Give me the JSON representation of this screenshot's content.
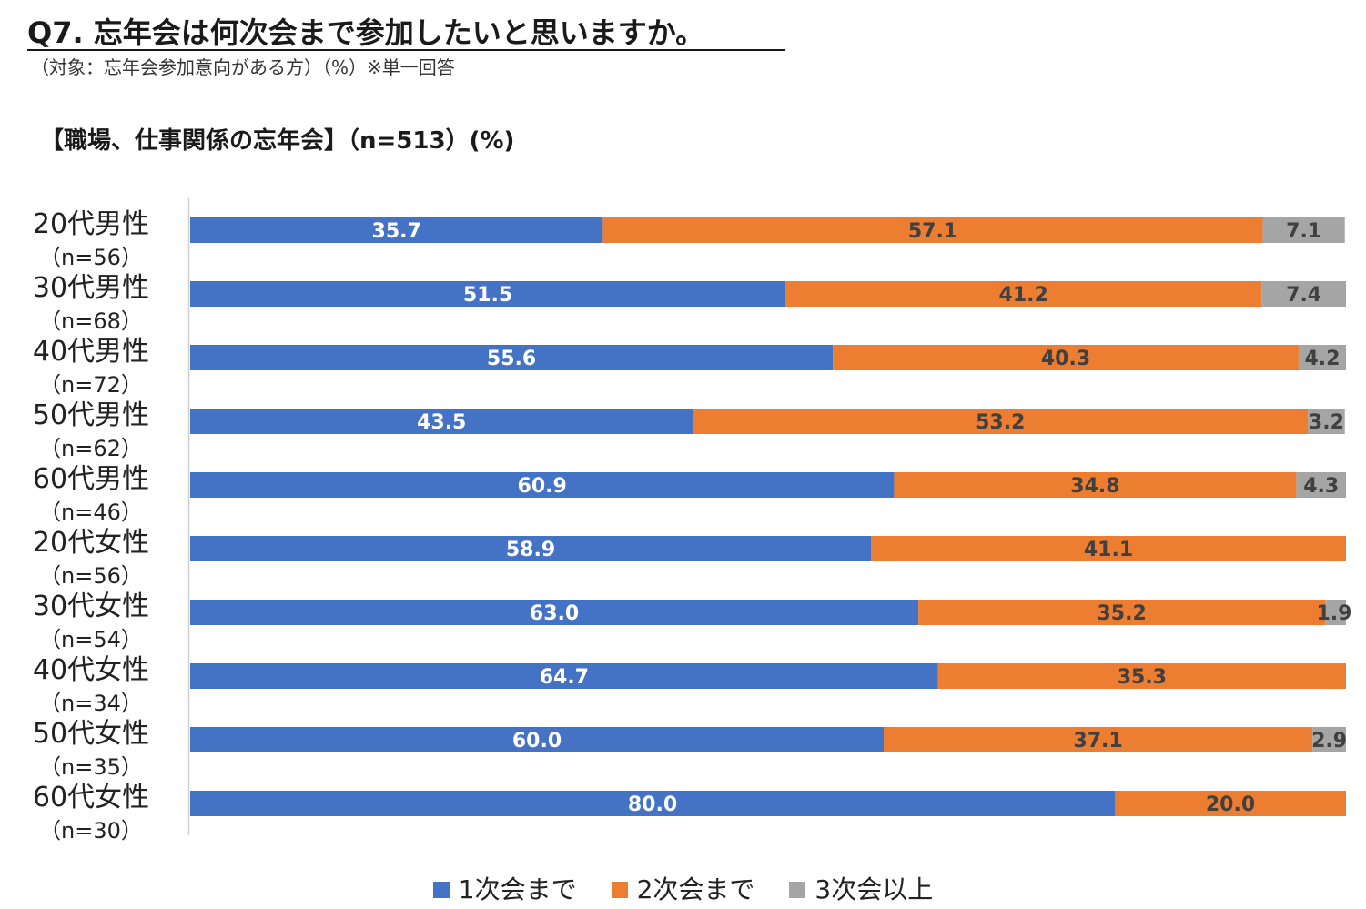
{
  "header": {
    "title": "Q7. 忘年会は何次会まで参加したいと思いますか。",
    "subtitle": "（対象：忘年会参加意向がある方）（%）※単一回答"
  },
  "chart_data": {
    "type": "bar",
    "orientation": "horizontal",
    "stacked": true,
    "title": "【職場、仕事関係の忘年会】（n=513）(%)",
    "xlim": [
      0,
      100
    ],
    "categories": [
      {
        "name": "20代男性",
        "n": "（n=56）"
      },
      {
        "name": "30代男性",
        "n": "（n=68）"
      },
      {
        "name": "40代男性",
        "n": "（n=72）"
      },
      {
        "name": "50代男性",
        "n": "（n=62）"
      },
      {
        "name": "60代男性",
        "n": "（n=46）"
      },
      {
        "name": "20代女性",
        "n": "（n=56）"
      },
      {
        "name": "30代女性",
        "n": "（n=54）"
      },
      {
        "name": "40代女性",
        "n": "（n=34）"
      },
      {
        "name": "50代女性",
        "n": "（n=35）"
      },
      {
        "name": "60代女性",
        "n": "（n=30）"
      }
    ],
    "series": [
      {
        "name": "1次会まで",
        "color": "#4472C4",
        "label_color": "#ffffff",
        "values": [
          35.7,
          51.5,
          55.6,
          43.5,
          60.9,
          58.9,
          63.0,
          64.7,
          60.0,
          80.0
        ]
      },
      {
        "name": "2次会まで",
        "color": "#ED7D31",
        "label_color": "#404040",
        "values": [
          57.1,
          41.2,
          40.3,
          53.2,
          34.8,
          41.1,
          35.2,
          35.3,
          37.1,
          20.0
        ]
      },
      {
        "name": "3次会以上",
        "color": "#A5A5A5",
        "label_color": "#404040",
        "values": [
          7.1,
          7.4,
          4.2,
          3.2,
          4.3,
          null,
          1.9,
          null,
          2.9,
          null
        ]
      }
    ],
    "legend_position": "bottom"
  }
}
